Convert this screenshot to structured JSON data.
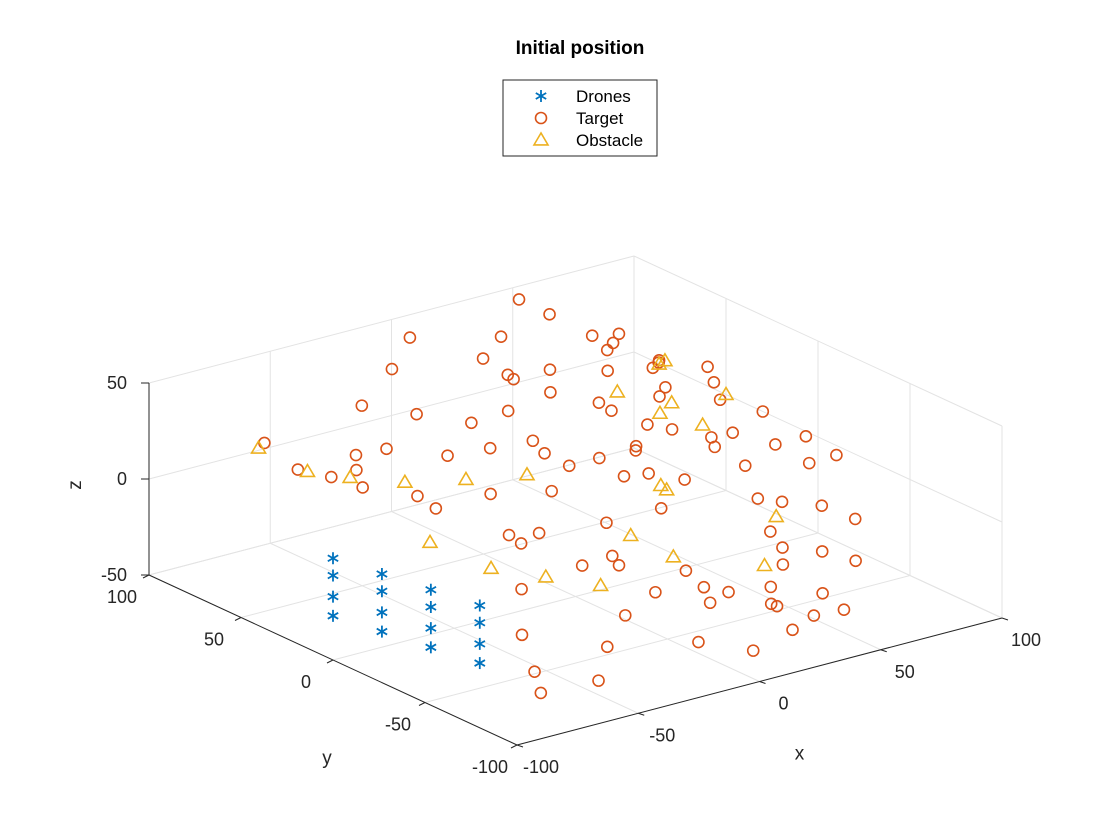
{
  "chart_data": {
    "type": "scatter3d",
    "title": "Initial position",
    "xlabel": "x",
    "ylabel": "y",
    "zlabel": "z",
    "xlim": [
      -100,
      100
    ],
    "ylim": [
      -100,
      100
    ],
    "zlim": [
      -50,
      50
    ],
    "xticks": [
      -100,
      -50,
      0,
      50,
      100
    ],
    "yticks": [
      -100,
      -50,
      0,
      50,
      100
    ],
    "zticks": [
      -50,
      0,
      50
    ],
    "grid": true,
    "legend_position": "top-center",
    "series": [
      {
        "name": "Drones",
        "marker": "asterisk",
        "color": "#0072BD",
        "points": [
          [
            -85,
            -60,
            -9
          ],
          [
            -90,
            -40,
            -8
          ],
          [
            -95,
            -20,
            -7
          ],
          [
            -100,
            0,
            -6
          ],
          [
            -85,
            -60,
            -20
          ],
          [
            -90,
            -40,
            -19
          ],
          [
            -95,
            -20,
            -18
          ],
          [
            -100,
            0,
            -17
          ],
          [
            -85,
            -60,
            -30
          ],
          [
            -90,
            -40,
            -29
          ],
          [
            -95,
            -20,
            -28
          ],
          [
            -100,
            0,
            -27
          ],
          [
            -85,
            -60,
            0
          ],
          [
            -90,
            -40,
            1
          ],
          [
            -95,
            -20,
            2
          ],
          [
            -100,
            0,
            3
          ]
        ]
      },
      {
        "name": "Target",
        "marker": "circle",
        "color": "#D95319",
        "points": [
          [
            -60,
            90,
            10
          ],
          [
            -50,
            85,
            -5
          ],
          [
            -40,
            80,
            -10
          ],
          [
            -45,
            60,
            12
          ],
          [
            -60,
            40,
            18
          ],
          [
            -30,
            30,
            20
          ],
          [
            -20,
            20,
            25
          ],
          [
            -50,
            20,
            10
          ],
          [
            -35,
            0,
            15
          ],
          [
            -25,
            -20,
            22
          ],
          [
            -10,
            10,
            30
          ],
          [
            -5,
            30,
            35
          ],
          [
            10,
            50,
            40
          ],
          [
            20,
            40,
            32
          ],
          [
            30,
            20,
            28
          ],
          [
            25,
            0,
            20
          ],
          [
            15,
            -20,
            18
          ],
          [
            5,
            -40,
            12
          ],
          [
            -10,
            -30,
            5
          ],
          [
            -20,
            -50,
            -5
          ],
          [
            0,
            -60,
            -10
          ],
          [
            10,
            -70,
            -20
          ],
          [
            20,
            -80,
            -25
          ],
          [
            30,
            -90,
            -30
          ],
          [
            40,
            -60,
            -20
          ],
          [
            50,
            -40,
            -15
          ],
          [
            60,
            -20,
            -10
          ],
          [
            70,
            0,
            -5
          ],
          [
            80,
            20,
            0
          ],
          [
            90,
            40,
            5
          ],
          [
            100,
            60,
            10
          ],
          [
            80,
            60,
            20
          ],
          [
            60,
            70,
            35
          ],
          [
            50,
            80,
            45
          ],
          [
            45,
            90,
            50
          ],
          [
            30,
            80,
            40
          ],
          [
            20,
            60,
            30
          ],
          [
            40,
            40,
            20
          ],
          [
            55,
            20,
            10
          ],
          [
            65,
            40,
            15
          ],
          [
            75,
            50,
            12
          ],
          [
            85,
            70,
            10
          ],
          [
            95,
            80,
            5
          ],
          [
            100,
            30,
            0
          ],
          [
            90,
            10,
            -5
          ],
          [
            70,
            -20,
            -15
          ],
          [
            55,
            -40,
            -25
          ],
          [
            35,
            -60,
            -30
          ],
          [
            15,
            -50,
            -28
          ],
          [
            0,
            -20,
            -20
          ],
          [
            -15,
            0,
            -12
          ],
          [
            -30,
            -10,
            -8
          ],
          [
            -45,
            -30,
            -18
          ],
          [
            -60,
            -50,
            -28
          ],
          [
            -70,
            -70,
            -35
          ],
          [
            -75,
            -80,
            -40
          ],
          [
            -55,
            -85,
            -38
          ],
          [
            -40,
            -70,
            -32
          ],
          [
            -25,
            -60,
            -25
          ],
          [
            -10,
            -80,
            -35
          ],
          [
            5,
            -90,
            -40
          ],
          [
            25,
            -85,
            -38
          ],
          [
            45,
            -75,
            -30
          ],
          [
            60,
            -55,
            -22
          ],
          [
            75,
            -35,
            -12
          ],
          [
            85,
            -15,
            -2
          ],
          [
            95,
            0,
            2
          ],
          [
            100,
            -10,
            -5
          ],
          [
            65,
            10,
            2
          ],
          [
            45,
            0,
            -4
          ],
          [
            25,
            20,
            5
          ],
          [
            10,
            30,
            8
          ],
          [
            -5,
            50,
            20
          ],
          [
            -20,
            60,
            25
          ],
          [
            -35,
            70,
            30
          ],
          [
            -15,
            80,
            38
          ],
          [
            0,
            90,
            45
          ],
          [
            15,
            70,
            38
          ],
          [
            35,
            60,
            30
          ],
          [
            55,
            55,
            25
          ],
          [
            70,
            75,
            22
          ],
          [
            80,
            85,
            18
          ],
          [
            90,
            95,
            15
          ],
          [
            95,
            50,
            8
          ],
          [
            85,
            -40,
            -20
          ],
          [
            70,
            -60,
            -28
          ],
          [
            50,
            -80,
            -38
          ],
          [
            30,
            -70,
            -34
          ],
          [
            10,
            -60,
            -30
          ],
          [
            -5,
            -50,
            -24
          ],
          [
            -20,
            -30,
            -14
          ],
          [
            -35,
            -10,
            -2
          ],
          [
            -50,
            10,
            8
          ],
          [
            -65,
            30,
            15
          ],
          [
            -40,
            50,
            18
          ],
          [
            5,
            10,
            12
          ],
          [
            20,
            0,
            6
          ],
          [
            40,
            20,
            4
          ],
          [
            60,
            40,
            2
          ],
          [
            75,
            25,
            -3
          ]
        ]
      },
      {
        "name": "Obstacle",
        "marker": "triangle",
        "color": "#EDB120",
        "points": [
          [
            -70,
            80,
            15
          ],
          [
            -65,
            60,
            10
          ],
          [
            -55,
            50,
            8
          ],
          [
            -40,
            40,
            5
          ],
          [
            -30,
            20,
            12
          ],
          [
            -20,
            0,
            20
          ],
          [
            -60,
            0,
            -2
          ],
          [
            -50,
            -20,
            -10
          ],
          [
            -35,
            -30,
            -15
          ],
          [
            -20,
            -40,
            -20
          ],
          [
            0,
            -30,
            -5
          ],
          [
            20,
            -20,
            10
          ],
          [
            40,
            30,
            30
          ],
          [
            50,
            20,
            20
          ],
          [
            60,
            10,
            15
          ],
          [
            70,
            40,
            10
          ],
          [
            80,
            60,
            18
          ],
          [
            90,
            70,
            12
          ],
          [
            100,
            50,
            0
          ],
          [
            60,
            -30,
            -15
          ],
          [
            40,
            -50,
            -25
          ],
          [
            30,
            -10,
            0
          ],
          [
            10,
            -40,
            -15
          ]
        ]
      }
    ]
  },
  "legend": {
    "items": [
      {
        "label": "Drones",
        "marker": "asterisk",
        "color": "#0072BD"
      },
      {
        "label": "Target",
        "marker": "circle",
        "color": "#D95319"
      },
      {
        "label": "Obstacle",
        "marker": "triangle",
        "color": "#EDB120"
      }
    ]
  }
}
